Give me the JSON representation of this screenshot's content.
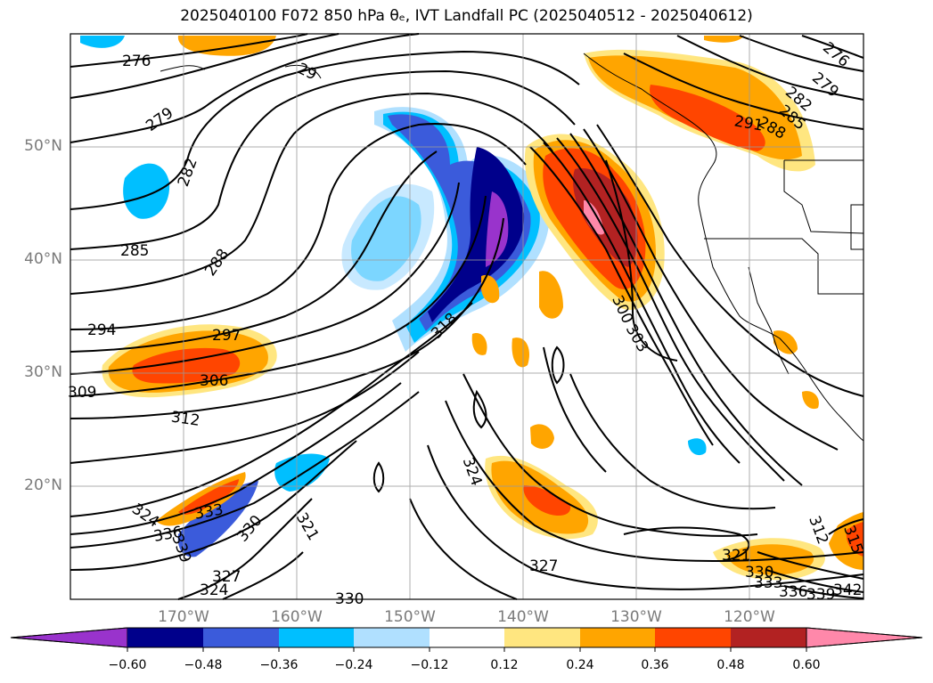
{
  "title": "2025040100 F072 850 hPa θₑ, IVT Landfall PC (2025040512 - 2025040612)",
  "lat_labels": [
    "50°N",
    "40°N",
    "30°N",
    "20°N"
  ],
  "lon_labels": [
    "170°W",
    "160°W",
    "150°W",
    "140°W",
    "130°W",
    "120°W"
  ],
  "contour_labels": [
    "276",
    "279",
    "282",
    "285",
    "288",
    "29",
    "294",
    "297",
    "306",
    "309",
    "312",
    "321",
    "324",
    "327",
    "330",
    "333",
    "336",
    "318",
    "300",
    "303",
    "291",
    "276",
    "279",
    "282",
    "285",
    "288",
    "312",
    "315",
    "321",
    "330",
    "333",
    "336",
    "339",
    "342",
    "330",
    "327",
    "324",
    "339"
  ],
  "colorbar": {
    "ticks": [
      "−0.60",
      "−0.48",
      "−0.36",
      "−0.24",
      "−0.12",
      "0.12",
      "0.24",
      "0.36",
      "0.48",
      "0.60"
    ],
    "colors": [
      "#9933cc",
      "#00008b",
      "#3b5bdb",
      "#00bfff",
      "#b0e0ff",
      "#ffffff",
      "#ffe680",
      "#ffa500",
      "#ff4500",
      "#b22222",
      "#ff88aa"
    ]
  },
  "field_colors": {
    "purple": "#9933cc",
    "navy": "#00008b",
    "royal": "#3b5bdb",
    "sky": "#00bfff",
    "pale_blue": "#b0e0ff",
    "pale_yellow": "#ffe680",
    "orange": "#ffa500",
    "red_orange": "#ff4500",
    "firebrick": "#b22222",
    "pink": "#ff88aa"
  }
}
